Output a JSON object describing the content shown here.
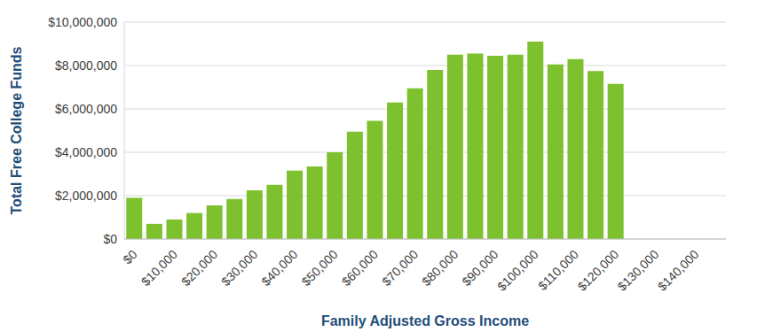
{
  "chart_data": {
    "type": "bar",
    "x_label": "Family Adjusted Gross Income",
    "y_label": "Total Free College Funds",
    "categories": [
      "$0",
      null,
      "$10,000",
      null,
      "$20,000",
      null,
      "$30,000",
      null,
      "$40,000",
      null,
      "$50,000",
      null,
      "$60,000",
      null,
      "$70,000",
      null,
      "$80,000",
      null,
      "$90,000",
      null,
      "$100,000",
      null,
      "$110,000",
      null,
      "$120,000",
      null,
      "$130,000",
      null,
      "$140,000",
      null
    ],
    "values": [
      1900000,
      700000,
      900000,
      1200000,
      1550000,
      1850000,
      2250000,
      2500000,
      3150000,
      3350000,
      4000000,
      4950000,
      5450000,
      6300000,
      6950000,
      7800000,
      8500000,
      8550000,
      8450000,
      8500000,
      9100000,
      8050000,
      8300000,
      7750000,
      7150000,
      0,
      0,
      0,
      0,
      0
    ],
    "color": "#7dc12e",
    "ylim": [
      0,
      10000000
    ],
    "yticks": [
      {
        "value": 0,
        "label": "$0"
      },
      {
        "value": 2000000,
        "label": "$2,000,000"
      },
      {
        "value": 4000000,
        "label": "$4,000,000"
      },
      {
        "value": 6000000,
        "label": "$6,000,000"
      },
      {
        "value": 8000000,
        "label": "$8,000,000"
      },
      {
        "value": 10000000,
        "label": "$10,000,000"
      }
    ],
    "grid": true
  }
}
